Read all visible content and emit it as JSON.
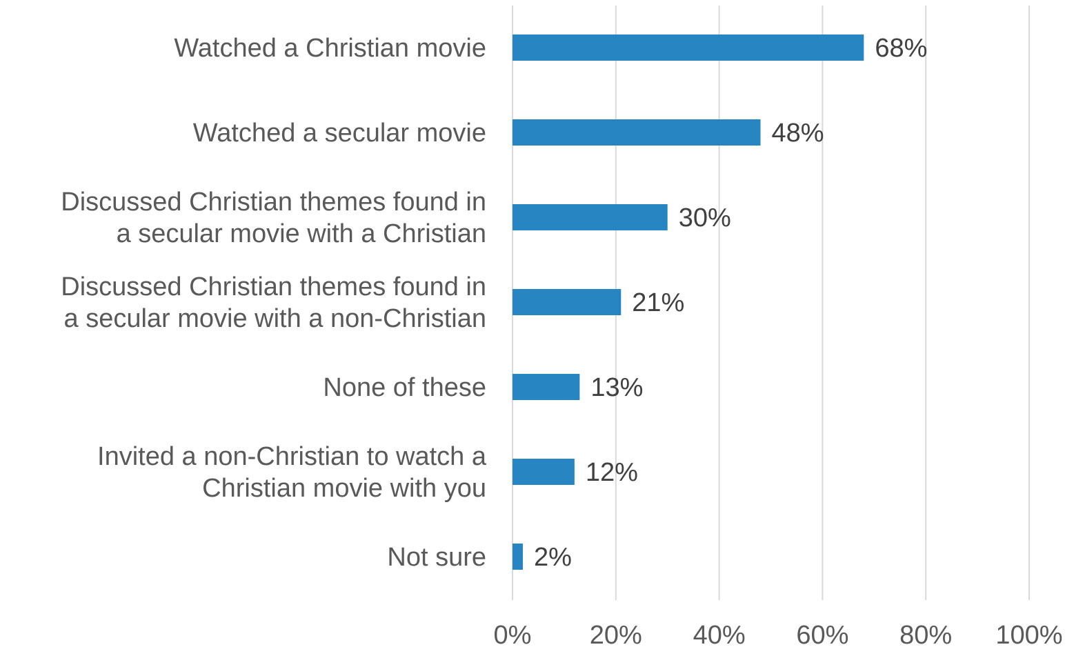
{
  "chart_data": {
    "type": "bar",
    "orientation": "horizontal",
    "categories": [
      [
        "Watched a Christian movie"
      ],
      [
        "Watched a secular movie"
      ],
      [
        "Discussed Christian themes found in",
        "a secular movie with a Christian"
      ],
      [
        "Discussed Christian themes found in",
        "a secular movie with a non-Christian"
      ],
      [
        "None of these"
      ],
      [
        "Invited a non-Christian to watch a",
        "Christian movie with you"
      ],
      [
        "Not sure"
      ]
    ],
    "values": [
      68,
      48,
      30,
      21,
      13,
      12,
      2
    ],
    "data_labels": [
      "68%",
      "48%",
      "30%",
      "21%",
      "13%",
      "12%",
      "2%"
    ],
    "xlim": [
      0,
      100
    ],
    "x_ticks": [
      0,
      20,
      40,
      60,
      80,
      100
    ],
    "x_tick_labels": [
      "0%",
      "20%",
      "40%",
      "60%",
      "80%",
      "100%"
    ],
    "grid": true,
    "legend": "none",
    "bar_color": "#2786c2"
  }
}
